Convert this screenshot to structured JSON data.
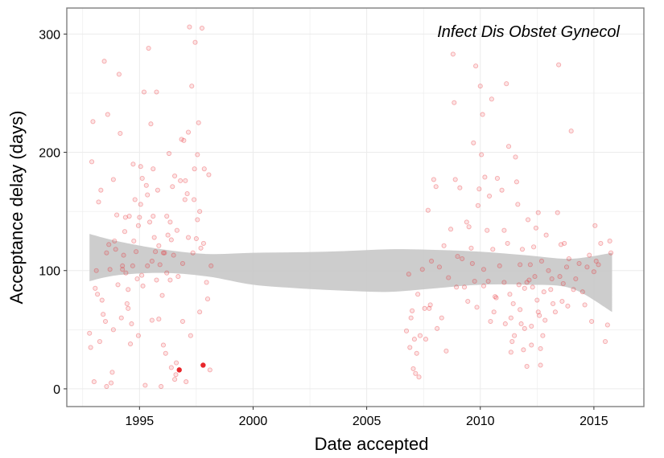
{
  "chart_data": {
    "type": "scatter",
    "title": "Infect Dis Obstet Gynecol",
    "xlabel": "Date accepted",
    "ylabel": "Acceptance delay (days)",
    "xlim": [
      1991.8,
      2017.2
    ],
    "ylim": [
      -15,
      322
    ],
    "x_ticks": [
      1995,
      2000,
      2005,
      2010,
      2015
    ],
    "y_ticks": [
      0,
      100,
      200,
      300
    ],
    "x_tick_labels": [
      "1995",
      "2000",
      "2005",
      "2010",
      "2015"
    ],
    "y_tick_labels": [
      "0",
      "100",
      "200",
      "300"
    ],
    "grid": true,
    "colors": {
      "point": "#e8262b",
      "band": "#c8c8c8",
      "grid": "#ebebeb",
      "border": "#7f7f7f"
    },
    "highlighted_points": [
      {
        "x": 1996.75,
        "y": 16
      },
      {
        "x": 1997.8,
        "y": 20
      }
    ],
    "points": [
      [
        1992.9,
        192
      ],
      [
        1992.95,
        226
      ],
      [
        1992.8,
        47
      ],
      [
        1992.85,
        35
      ],
      [
        1993.0,
        6
      ],
      [
        1993.05,
        85
      ],
      [
        1993.15,
        80
      ],
      [
        1993.2,
        158
      ],
      [
        1993.3,
        168
      ],
      [
        1993.35,
        75
      ],
      [
        1993.45,
        277
      ],
      [
        1993.5,
        57
      ],
      [
        1993.55,
        2
      ],
      [
        1993.6,
        232
      ],
      [
        1993.4,
        63
      ],
      [
        1993.7,
        101
      ],
      [
        1993.75,
        5
      ],
      [
        1993.8,
        14
      ],
      [
        1993.85,
        177
      ],
      [
        1993.9,
        125
      ],
      [
        1993.95,
        118
      ],
      [
        1994.0,
        147
      ],
      [
        1994.05,
        88
      ],
      [
        1994.1,
        266
      ],
      [
        1994.15,
        216
      ],
      [
        1994.2,
        60
      ],
      [
        1994.25,
        104
      ],
      [
        1994.3,
        113
      ],
      [
        1994.35,
        133
      ],
      [
        1994.4,
        98
      ],
      [
        1994.45,
        72
      ],
      [
        1994.5,
        84
      ],
      [
        1994.55,
        146
      ],
      [
        1994.6,
        38
      ],
      [
        1994.65,
        55
      ],
      [
        1994.7,
        104
      ],
      [
        1994.75,
        125
      ],
      [
        1994.8,
        160
      ],
      [
        1994.85,
        116
      ],
      [
        1994.9,
        93
      ],
      [
        1994.95,
        138
      ],
      [
        1995.0,
        145
      ],
      [
        1995.05,
        156
      ],
      [
        1995.1,
        96
      ],
      [
        1995.15,
        87
      ],
      [
        1995.2,
        251
      ],
      [
        1995.25,
        3
      ],
      [
        1995.3,
        172
      ],
      [
        1995.35,
        164
      ],
      [
        1995.4,
        288
      ],
      [
        1995.45,
        141
      ],
      [
        1995.5,
        224
      ],
      [
        1995.55,
        108
      ],
      [
        1995.6,
        186
      ],
      [
        1995.65,
        128
      ],
      [
        1995.7,
        116
      ],
      [
        1995.75,
        251
      ],
      [
        1995.8,
        168
      ],
      [
        1995.85,
        59
      ],
      [
        1995.9,
        105
      ],
      [
        1995.95,
        2
      ],
      [
        1996.0,
        79
      ],
      [
        1996.05,
        37
      ],
      [
        1996.1,
        115
      ],
      [
        1996.15,
        30
      ],
      [
        1996.2,
        146
      ],
      [
        1996.25,
        130
      ],
      [
        1996.3,
        199
      ],
      [
        1996.35,
        92
      ],
      [
        1996.4,
        126
      ],
      [
        1996.45,
        171
      ],
      [
        1996.5,
        113
      ],
      [
        1996.55,
        8
      ],
      [
        1996.6,
        12
      ],
      [
        1996.65,
        134
      ],
      [
        1996.7,
        95
      ],
      [
        1996.8,
        176
      ],
      [
        1996.85,
        211
      ],
      [
        1996.9,
        57
      ],
      [
        1996.95,
        210
      ],
      [
        1997.0,
        160
      ],
      [
        1997.05,
        6
      ],
      [
        1997.1,
        165
      ],
      [
        1997.15,
        128
      ],
      [
        1997.2,
        306
      ],
      [
        1997.25,
        45
      ],
      [
        1997.3,
        256
      ],
      [
        1997.35,
        115
      ],
      [
        1997.4,
        160
      ],
      [
        1997.45,
        293
      ],
      [
        1997.5,
        127
      ],
      [
        1997.55,
        198
      ],
      [
        1997.6,
        225
      ],
      [
        1997.65,
        150
      ],
      [
        1997.7,
        119
      ],
      [
        1997.75,
        305
      ],
      [
        1997.85,
        186
      ],
      [
        1997.95,
        90
      ],
      [
        1998.0,
        76
      ],
      [
        1998.05,
        181
      ],
      [
        1998.1,
        16
      ],
      [
        1998.15,
        104
      ],
      [
        1993.1,
        100
      ],
      [
        1993.65,
        122
      ],
      [
        1994.38,
        145
      ],
      [
        1994.72,
        190
      ],
      [
        1995.12,
        178
      ],
      [
        1995.55,
        58
      ],
      [
        1995.85,
        121
      ],
      [
        1996.2,
        98
      ],
      [
        1996.62,
        22
      ],
      [
        1996.4,
        18
      ],
      [
        1997.02,
        176
      ],
      [
        1997.42,
        186
      ],
      [
        1997.82,
        123
      ],
      [
        1994.5,
        68
      ],
      [
        1993.85,
        50
      ],
      [
        1995.05,
        188
      ],
      [
        1996.9,
        106
      ],
      [
        1995.6,
        146
      ],
      [
        1996.05,
        115
      ],
      [
        1996.55,
        180
      ],
      [
        1997.15,
        217
      ],
      [
        1995.35,
        104
      ],
      [
        1994.25,
        101
      ],
      [
        1993.55,
        115
      ],
      [
        1995.75,
        92
      ],
      [
        1997.55,
        143
      ],
      [
        1996.35,
        141
      ],
      [
        1994.95,
        45
      ],
      [
        1993.25,
        40
      ],
      [
        1997.65,
        65
      ],
      [
        2006.75,
        49
      ],
      [
        2006.85,
        97
      ],
      [
        2006.9,
        35
      ],
      [
        2006.95,
        60
      ],
      [
        2007.0,
        66
      ],
      [
        2007.05,
        17
      ],
      [
        2007.1,
        42
      ],
      [
        2007.15,
        13
      ],
      [
        2007.2,
        30
      ],
      [
        2007.25,
        80
      ],
      [
        2007.3,
        10
      ],
      [
        2007.35,
        45
      ],
      [
        2007.45,
        101
      ],
      [
        2007.55,
        68
      ],
      [
        2007.6,
        42
      ],
      [
        2007.7,
        151
      ],
      [
        2007.75,
        68
      ],
      [
        2007.8,
        71
      ],
      [
        2007.85,
        108
      ],
      [
        2007.95,
        177
      ],
      [
        2008.05,
        171
      ],
      [
        2008.1,
        51
      ],
      [
        2008.2,
        103
      ],
      [
        2008.3,
        60
      ],
      [
        2008.4,
        121
      ],
      [
        2008.5,
        32
      ],
      [
        2008.6,
        94
      ],
      [
        2008.7,
        135
      ],
      [
        2008.8,
        283
      ],
      [
        2008.85,
        242
      ],
      [
        2008.9,
        177
      ],
      [
        2009.0,
        112
      ],
      [
        2009.1,
        170
      ],
      [
        2009.2,
        110
      ],
      [
        2009.3,
        86
      ],
      [
        2009.4,
        141
      ],
      [
        2009.5,
        137
      ],
      [
        2009.6,
        119
      ],
      [
        2009.65,
        106
      ],
      [
        2009.7,
        208
      ],
      [
        2009.75,
        91
      ],
      [
        2009.8,
        273
      ],
      [
        2009.85,
        69
      ],
      [
        2009.9,
        155
      ],
      [
        2009.95,
        169
      ],
      [
        2010.0,
        256
      ],
      [
        2010.05,
        198
      ],
      [
        2010.1,
        232
      ],
      [
        2010.15,
        101
      ],
      [
        2010.2,
        179
      ],
      [
        2010.3,
        134
      ],
      [
        2010.4,
        163
      ],
      [
        2010.45,
        57
      ],
      [
        2010.5,
        245
      ],
      [
        2010.6,
        65
      ],
      [
        2010.65,
        78
      ],
      [
        2010.75,
        178
      ],
      [
        2010.85,
        104
      ],
      [
        2010.95,
        168
      ],
      [
        2011.05,
        134
      ],
      [
        2011.1,
        55
      ],
      [
        2011.15,
        258
      ],
      [
        2011.2,
        123
      ],
      [
        2011.25,
        205
      ],
      [
        2011.3,
        80
      ],
      [
        2011.35,
        60
      ],
      [
        2011.4,
        40
      ],
      [
        2011.45,
        72
      ],
      [
        2011.55,
        196
      ],
      [
        2011.6,
        175
      ],
      [
        2011.65,
        156
      ],
      [
        2011.7,
        88
      ],
      [
        2011.75,
        67
      ],
      [
        2011.8,
        55
      ],
      [
        2011.85,
        118
      ],
      [
        2011.9,
        33
      ],
      [
        2011.95,
        85
      ],
      [
        2012.05,
        19
      ],
      [
        2012.1,
        143
      ],
      [
        2012.15,
        92
      ],
      [
        2012.2,
        105
      ],
      [
        2012.25,
        53
      ],
      [
        2012.3,
        86
      ],
      [
        2012.35,
        120
      ],
      [
        2012.45,
        136
      ],
      [
        2012.5,
        75
      ],
      [
        2012.55,
        149
      ],
      [
        2012.6,
        62
      ],
      [
        2012.65,
        34
      ],
      [
        2012.7,
        108
      ],
      [
        2012.75,
        45
      ],
      [
        2012.8,
        82
      ],
      [
        2012.9,
        130
      ],
      [
        2013.0,
        100
      ],
      [
        2013.1,
        84
      ],
      [
        2013.2,
        72
      ],
      [
        2013.3,
        65
      ],
      [
        2013.4,
        149
      ],
      [
        2013.45,
        274
      ],
      [
        2013.5,
        95
      ],
      [
        2013.55,
        122
      ],
      [
        2013.6,
        74
      ],
      [
        2013.7,
        123
      ],
      [
        2013.8,
        103
      ],
      [
        2013.9,
        110
      ],
      [
        2014.0,
        218
      ],
      [
        2014.1,
        84
      ],
      [
        2014.2,
        93
      ],
      [
        2014.35,
        106
      ],
      [
        2014.5,
        82
      ],
      [
        2014.6,
        71
      ],
      [
        2014.7,
        103
      ],
      [
        2014.8,
        113
      ],
      [
        2014.9,
        57
      ],
      [
        2015.0,
        99
      ],
      [
        2015.05,
        138
      ],
      [
        2015.1,
        108
      ],
      [
        2015.2,
        105
      ],
      [
        2015.3,
        123
      ],
      [
        2015.5,
        40
      ],
      [
        2015.6,
        54
      ],
      [
        2015.7,
        125
      ],
      [
        2015.75,
        115
      ],
      [
        2010.35,
        91
      ],
      [
        2010.55,
        118
      ],
      [
        2011.05,
        90
      ],
      [
        2011.5,
        45
      ],
      [
        2011.75,
        105
      ],
      [
        2012.05,
        90
      ],
      [
        2012.4,
        95
      ],
      [
        2012.85,
        58
      ],
      [
        2013.15,
        93
      ],
      [
        2013.65,
        89
      ],
      [
        2012.65,
        20
      ],
      [
        2011.95,
        51
      ],
      [
        2010.7,
        77
      ],
      [
        2009.45,
        74
      ],
      [
        2008.95,
        86
      ],
      [
        2013.85,
        70
      ],
      [
        2012.25,
        37
      ],
      [
        2011.35,
        31
      ],
      [
        2010.15,
        87
      ],
      [
        2012.55,
        65
      ]
    ],
    "smooth_fit": {
      "x": [
        1992.8,
        1994,
        1996,
        1998,
        2000,
        2002,
        2004,
        2006,
        2008,
        2010,
        2012,
        2014,
        2015.8
      ],
      "y": [
        111,
        110.5,
        108,
        104.5,
        101.5,
        100.3,
        99.8,
        100.2,
        101,
        101.8,
        100.5,
        97.5,
        90
      ],
      "lower": [
        91,
        96,
        98,
        95,
        88,
        85,
        83,
        82,
        85,
        88,
        88,
        85,
        65
      ],
      "upper": [
        131,
        125,
        118,
        114,
        115,
        115.5,
        116.5,
        118,
        117.5,
        116,
        113,
        110,
        115
      ]
    }
  }
}
